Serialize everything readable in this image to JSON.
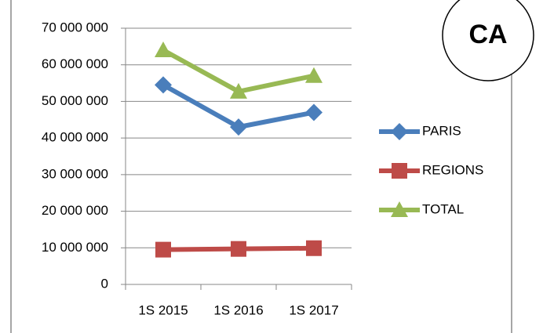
{
  "chart_data": {
    "type": "line",
    "annotation": "CA",
    "categories": [
      "1S 2015",
      "1S 2016",
      "1S 2017"
    ],
    "series": [
      {
        "name": "PARIS",
        "color": "#4a7ebb",
        "marker": "diamond",
        "values": [
          54500000,
          43000000,
          47000000
        ]
      },
      {
        "name": "REGIONS",
        "color": "#be4b48",
        "marker": "square",
        "values": [
          9500000,
          9700000,
          9900000
        ]
      },
      {
        "name": "TOTAL",
        "color": "#98b954",
        "marker": "triangle",
        "values": [
          64000000,
          52700000,
          57000000
        ]
      }
    ],
    "ylim": [
      0,
      70000000
    ],
    "yticks": [
      0,
      {
        "value": 10000000,
        "label": "10 000 000"
      },
      {
        "value": 20000000,
        "label": "20 000 000"
      },
      {
        "value": 30000000,
        "label": "30 000 000"
      },
      {
        "value": 40000000,
        "label": "40 000 000"
      },
      {
        "value": 50000000,
        "label": "50 000 000"
      },
      {
        "value": 60000000,
        "label": "60 000 000"
      },
      {
        "value": 70000000,
        "label": "70 000 000"
      }
    ],
    "grid": true,
    "legend": "right"
  }
}
